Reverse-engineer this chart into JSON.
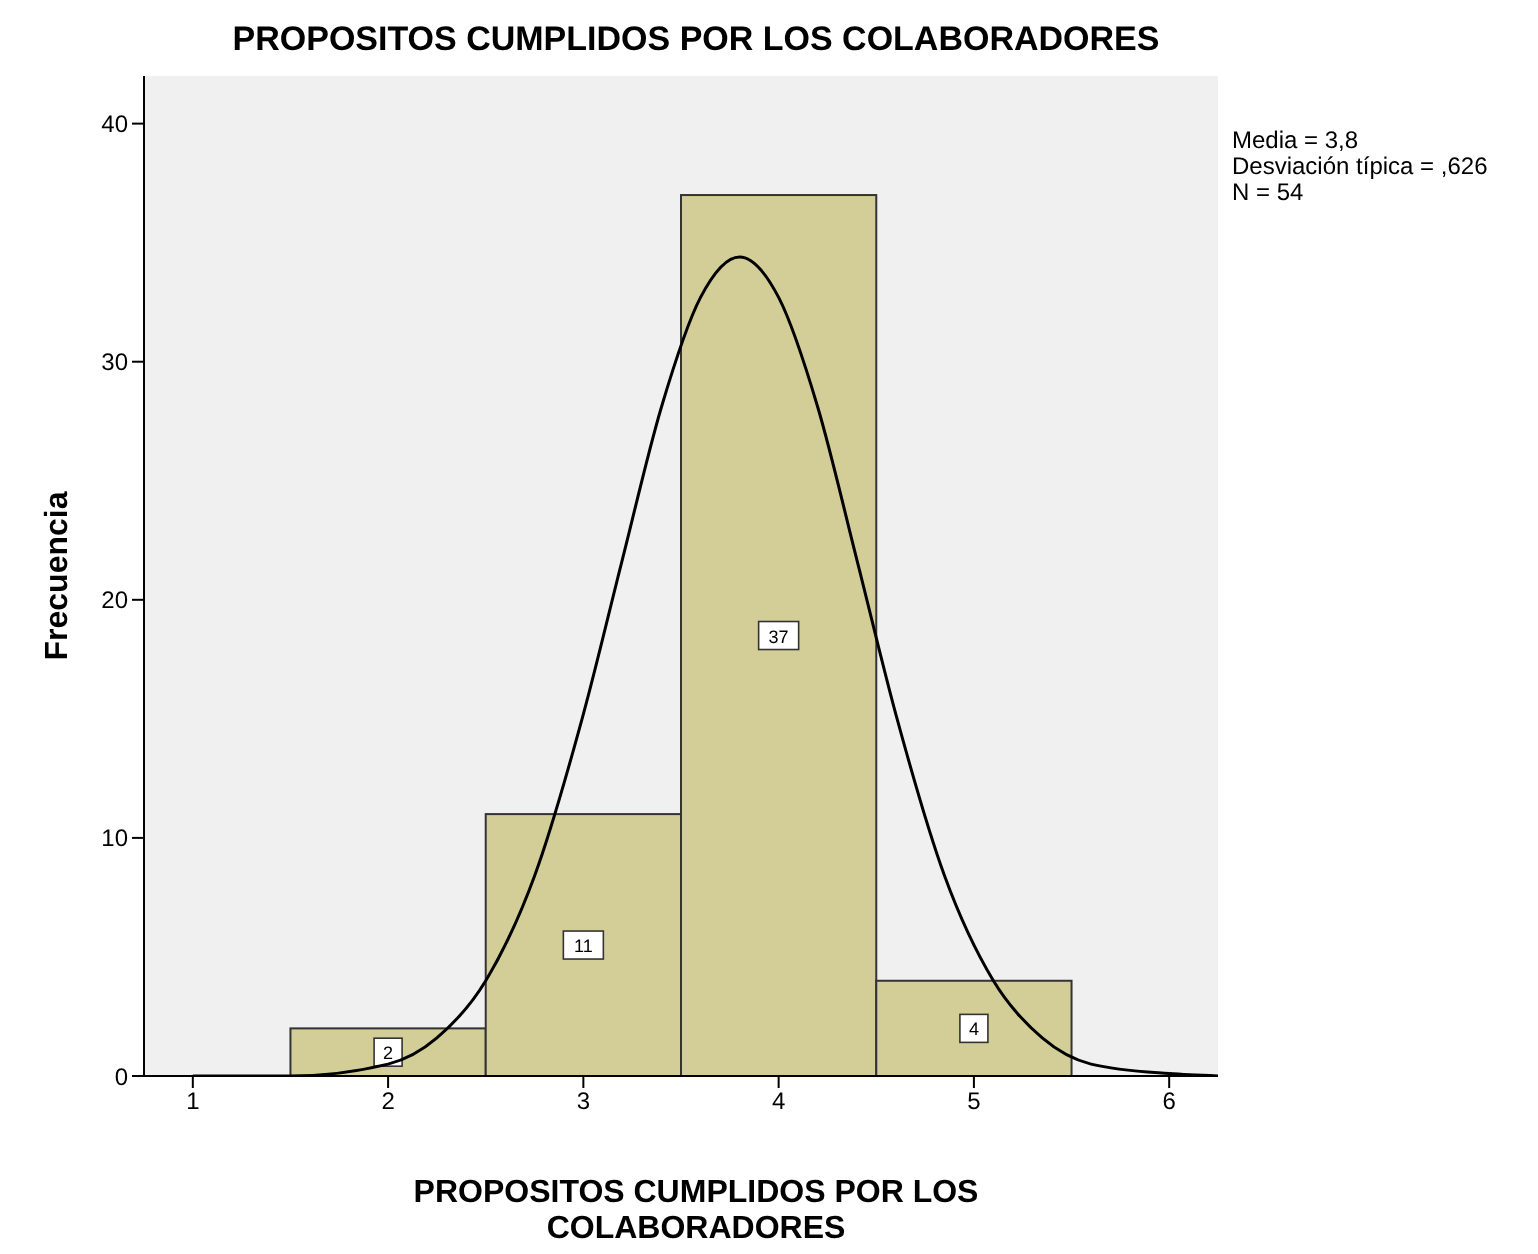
{
  "chart_data": {
    "type": "histogram",
    "title": "PROPOSITOS CUMPLIDOS POR LOS COLABORADORES",
    "xlabel": "PROPOSITOS CUMPLIDOS POR LOS COLABORADORES",
    "ylabel": "Frecuencia",
    "bins": [
      1.5,
      2.5,
      3.5,
      4.5,
      5.5
    ],
    "values": [
      2,
      11,
      37,
      4
    ],
    "color": "#d3ce97",
    "value_labels": [
      "2",
      "11",
      "37",
      "4"
    ],
    "series": [
      {
        "type": "line",
        "color": "#000000",
        "x": [
          1,
          1.5,
          2,
          2.25,
          2.5,
          2.75,
          3,
          3.2,
          3.4,
          3.6,
          3.8,
          4,
          4.2,
          4.4,
          4.6,
          4.85,
          5.1,
          5.35,
          5.6,
          6,
          6.25
        ],
        "values": [
          0,
          0,
          0.5,
          1.6,
          4,
          8.4,
          15.2,
          21.7,
          28.1,
          32.7,
          34.4,
          32.7,
          28.1,
          21.7,
          15.2,
          8.4,
          4,
          1.6,
          0.5,
          0.1,
          0
        ]
      }
    ],
    "marker": "none",
    "grid": false,
    "xlim": [
      0.75,
      6.25
    ],
    "xticks": [
      1,
      2,
      3,
      4,
      5,
      6
    ],
    "ylim": [
      0,
      42
    ],
    "yticks": [
      0,
      10,
      20,
      30,
      40
    ],
    "annotations": [
      "Media = 3,8",
      "Desviación típica = ,626",
      "N = 54"
    ]
  }
}
